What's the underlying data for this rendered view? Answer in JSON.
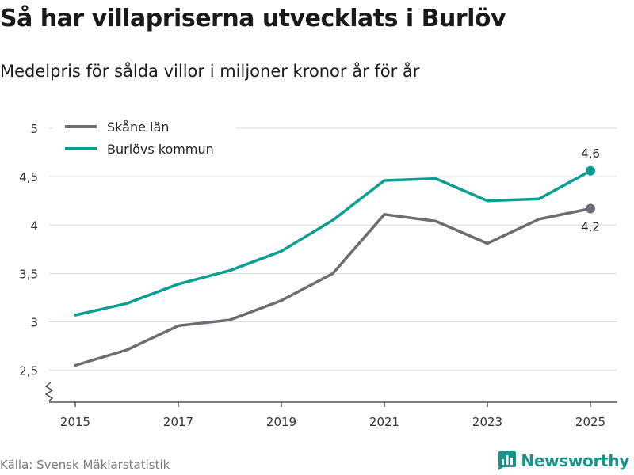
{
  "title": "Så har villapriserna utvecklats i Burlöv",
  "subtitle": "Medelpris för sålda villor i miljoner kronor år för år",
  "source": "Källa: Svensk Mäklarstatistik",
  "brand": {
    "name": "Newsworthy",
    "icon": "newsworthy-logo-icon",
    "color": "#17948a"
  },
  "chart_data": {
    "type": "line",
    "title": "Så har villapriserna utvecklats i Burlöv",
    "subtitle": "Medelpris för sålda villor i miljoner kronor år för år",
    "xlabel": "",
    "ylabel": "",
    "x": [
      2015,
      2016,
      2017,
      2018,
      2019,
      2020,
      2021,
      2022,
      2023,
      2024,
      2025
    ],
    "xticks": [
      2015,
      2017,
      2019,
      2021,
      2023,
      2025
    ],
    "xtick_labels": [
      "2015",
      "2017",
      "2019",
      "2021",
      "2023",
      "2025"
    ],
    "yticks": [
      2.5,
      3,
      3.5,
      4,
      4.5,
      5
    ],
    "ytick_labels": [
      "2,5",
      "3",
      "3,5",
      "4",
      "4,5",
      "5"
    ],
    "ylim": [
      2.17,
      5.0
    ],
    "xlim": [
      2014.5,
      2025.5
    ],
    "grid": true,
    "legend_position": "top-left",
    "series": [
      {
        "name": "Skåne län",
        "color": "#6d6b73",
        "values": [
          2.55,
          2.71,
          2.96,
          3.02,
          3.22,
          3.5,
          4.11,
          4.04,
          3.81,
          4.06,
          4.17
        ],
        "end_label": "4,2",
        "end_label_position": "below"
      },
      {
        "name": "Burlövs kommun",
        "color": "#0a9e93",
        "values": [
          3.07,
          3.19,
          3.39,
          3.53,
          3.73,
          4.05,
          4.46,
          4.48,
          4.25,
          4.27,
          4.56
        ],
        "end_label": "4,6",
        "end_label_position": "above"
      }
    ]
  }
}
